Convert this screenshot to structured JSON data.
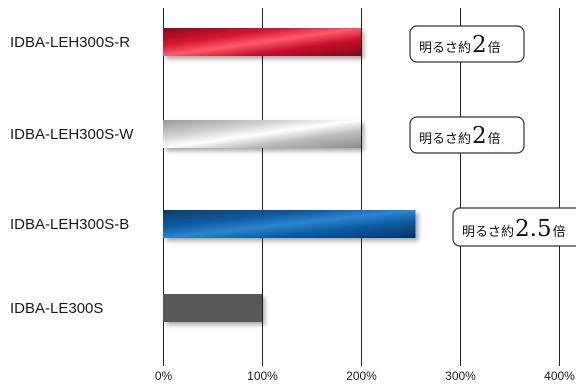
{
  "chart_data": {
    "type": "bar",
    "orientation": "horizontal",
    "categories": [
      "IDBA-LEH300S-R",
      "IDBA-LEH300S-W",
      "IDBA-LEH300S-B",
      "IDBA-LE300S"
    ],
    "values": [
      200,
      200,
      255,
      100
    ],
    "x_ticks": [
      "0%",
      "100%",
      "200%",
      "300%",
      "400%"
    ],
    "xlim": [
      0,
      400
    ],
    "grid": true,
    "colors": [
      "#c8102e",
      "#c0c0c0",
      "#0a5aa0",
      "#595959"
    ],
    "annotations": [
      {
        "category": "IDBA-LEH300S-R",
        "text_small": "明るさ約",
        "text_big": "2",
        "text_suffix": "倍"
      },
      {
        "category": "IDBA-LEH300S-W",
        "text_small": "明るさ約",
        "text_big": "2",
        "text_suffix": "倍"
      },
      {
        "category": "IDBA-LEH300S-B",
        "text_small": "明るさ約",
        "text_big": "2.5",
        "text_suffix": "倍"
      }
    ]
  }
}
